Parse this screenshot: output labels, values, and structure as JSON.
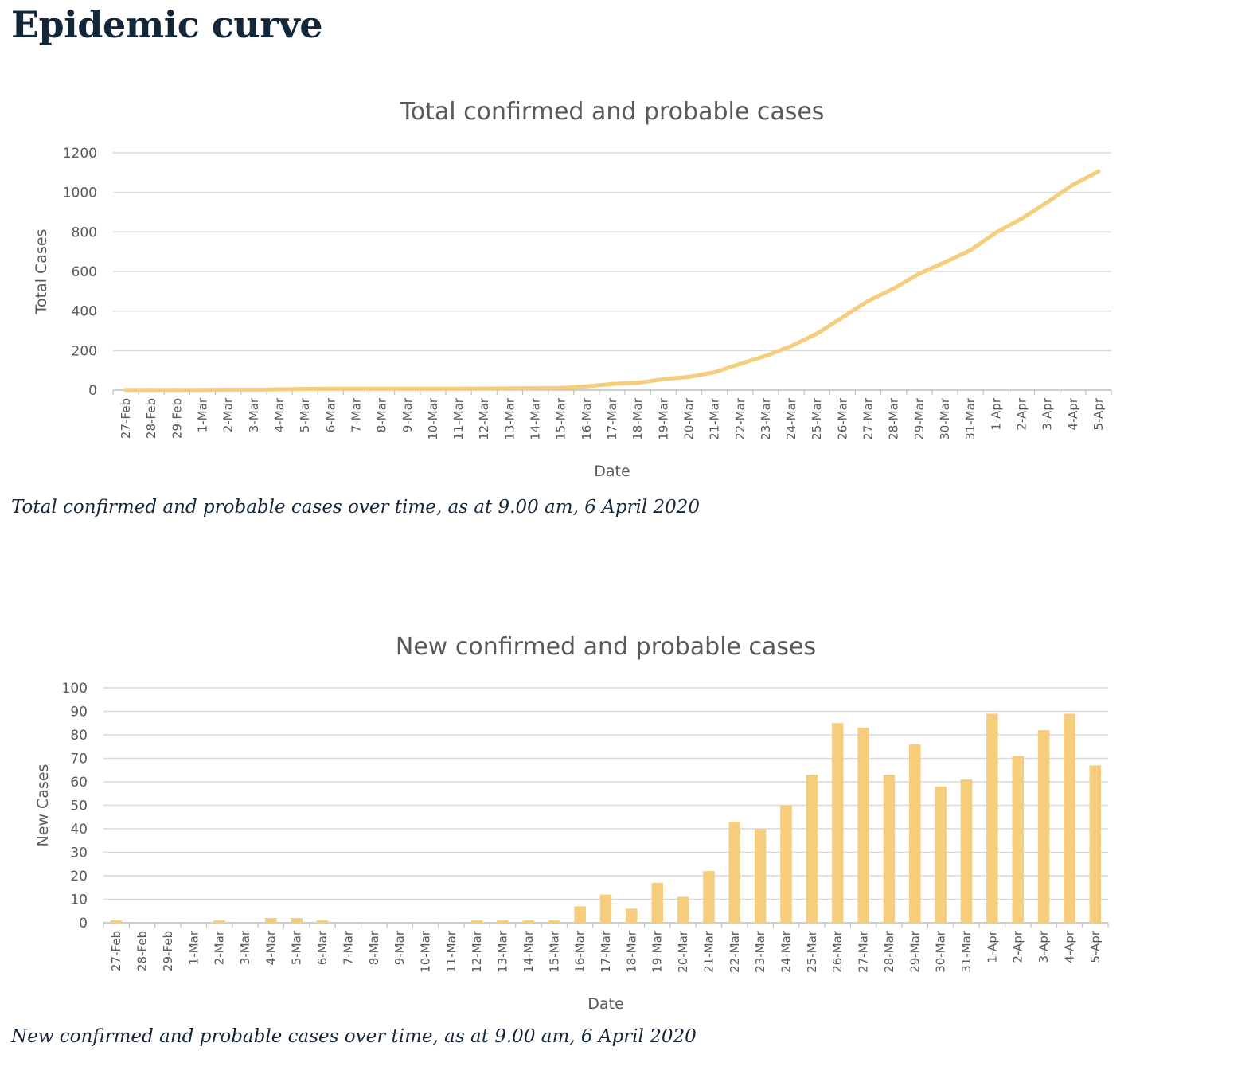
{
  "page": {
    "heading": "Epidemic curve",
    "caption_total": "Total confirmed and probable cases over time, as at 9.00 am, 6 April 2020",
    "caption_new": "New confirmed and probable cases over time, as at 9.00 am, 6 April 2020"
  },
  "colors": {
    "series": "#f5cd7d",
    "grid": "#d9d9d9",
    "axis": "#bfbfbf",
    "text": "#595959"
  },
  "chart_data": [
    {
      "type": "line",
      "title": "Total confirmed and probable cases",
      "xlabel": "Date",
      "ylabel": "Total Cases",
      "ylim": [
        0,
        1200
      ],
      "yticks": [
        0,
        200,
        400,
        600,
        800,
        1000,
        1200
      ],
      "grid": true,
      "legend": "none",
      "categories": [
        "27-Feb",
        "28-Feb",
        "29-Feb",
        "1-Mar",
        "2-Mar",
        "3-Mar",
        "4-Mar",
        "5-Mar",
        "6-Mar",
        "7-Mar",
        "8-Mar",
        "9-Mar",
        "10-Mar",
        "11-Mar",
        "12-Mar",
        "13-Mar",
        "14-Mar",
        "15-Mar",
        "16-Mar",
        "17-Mar",
        "18-Mar",
        "19-Mar",
        "20-Mar",
        "21-Mar",
        "22-Mar",
        "23-Mar",
        "24-Mar",
        "25-Mar",
        "26-Mar",
        "27-Mar",
        "28-Mar",
        "29-Mar",
        "30-Mar",
        "31-Mar",
        "1-Apr",
        "2-Apr",
        "3-Apr",
        "4-Apr",
        "5-Apr"
      ],
      "series": [
        {
          "values": [
            1,
            1,
            1,
            1,
            2,
            2,
            4,
            6,
            7,
            7,
            7,
            7,
            7,
            7,
            8,
            9,
            10,
            11,
            19,
            31,
            37,
            55,
            67,
            90,
            133,
            173,
            223,
            286,
            368,
            451,
            514,
            589,
            647,
            708,
            797,
            868,
            950,
            1039,
            1106
          ]
        }
      ]
    },
    {
      "type": "bar",
      "title": "New confirmed and probable cases",
      "xlabel": "Date",
      "ylabel": "New Cases",
      "ylim": [
        0,
        100
      ],
      "yticks": [
        0,
        10,
        20,
        30,
        40,
        50,
        60,
        70,
        80,
        90,
        100
      ],
      "grid": true,
      "legend": "none",
      "categories": [
        "27-Feb",
        "28-Feb",
        "29-Feb",
        "1-Mar",
        "2-Mar",
        "3-Mar",
        "4-Mar",
        "5-Mar",
        "6-Mar",
        "7-Mar",
        "8-Mar",
        "9-Mar",
        "10-Mar",
        "11-Mar",
        "12-Mar",
        "13-Mar",
        "14-Mar",
        "15-Mar",
        "16-Mar",
        "17-Mar",
        "18-Mar",
        "19-Mar",
        "20-Mar",
        "21-Mar",
        "22-Mar",
        "23-Mar",
        "24-Mar",
        "25-Mar",
        "26-Mar",
        "27-Mar",
        "28-Mar",
        "29-Mar",
        "30-Mar",
        "31-Mar",
        "1-Apr",
        "2-Apr",
        "3-Apr",
        "4-Apr",
        "5-Apr"
      ],
      "series": [
        {
          "values": [
            1,
            0,
            0,
            0,
            1,
            0,
            2,
            2,
            1,
            0,
            0,
            0,
            0,
            0,
            1,
            1,
            1,
            1,
            7,
            12,
            6,
            17,
            11,
            22,
            43,
            40,
            50,
            63,
            85,
            83,
            63,
            76,
            58,
            61,
            89,
            71,
            82,
            89,
            67
          ]
        }
      ]
    }
  ]
}
